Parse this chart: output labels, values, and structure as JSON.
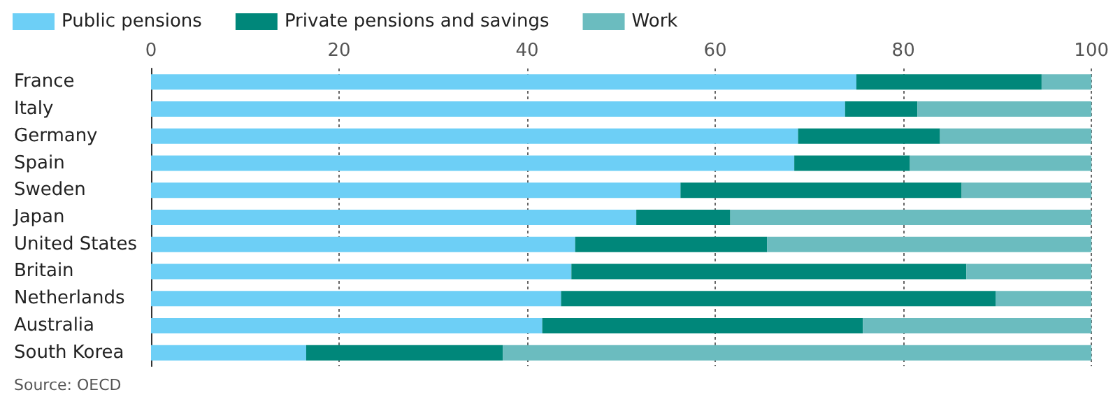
{
  "chart_data": {
    "type": "bar",
    "orientation": "horizontal",
    "stacked": true,
    "categories": [
      "France",
      "Italy",
      "Germany",
      "Spain",
      "Sweden",
      "Japan",
      "United States",
      "Britain",
      "Netherlands",
      "Australia",
      "South Korea"
    ],
    "series": [
      {
        "name": "Public pensions",
        "color": "#6dcff6",
        "values": [
          75.0,
          73.8,
          68.8,
          68.4,
          56.3,
          51.6,
          45.1,
          44.7,
          43.6,
          41.6,
          16.5
        ]
      },
      {
        "name": "Private pensions and savings",
        "color": "#00877a",
        "values": [
          19.7,
          7.7,
          15.1,
          12.3,
          29.9,
          10.0,
          20.4,
          42.0,
          46.2,
          34.1,
          20.9
        ]
      },
      {
        "name": "Work",
        "color": "#6bbcbf",
        "values": [
          5.3,
          18.5,
          16.1,
          19.3,
          13.8,
          38.4,
          34.5,
          13.3,
          10.2,
          24.3,
          62.6
        ]
      }
    ],
    "xlim": [
      0,
      100
    ],
    "xticks": [
      0,
      20,
      40,
      60,
      80,
      100
    ],
    "grid": "x",
    "legend": "top left",
    "annotations": [
      "Source: OECD"
    ]
  }
}
